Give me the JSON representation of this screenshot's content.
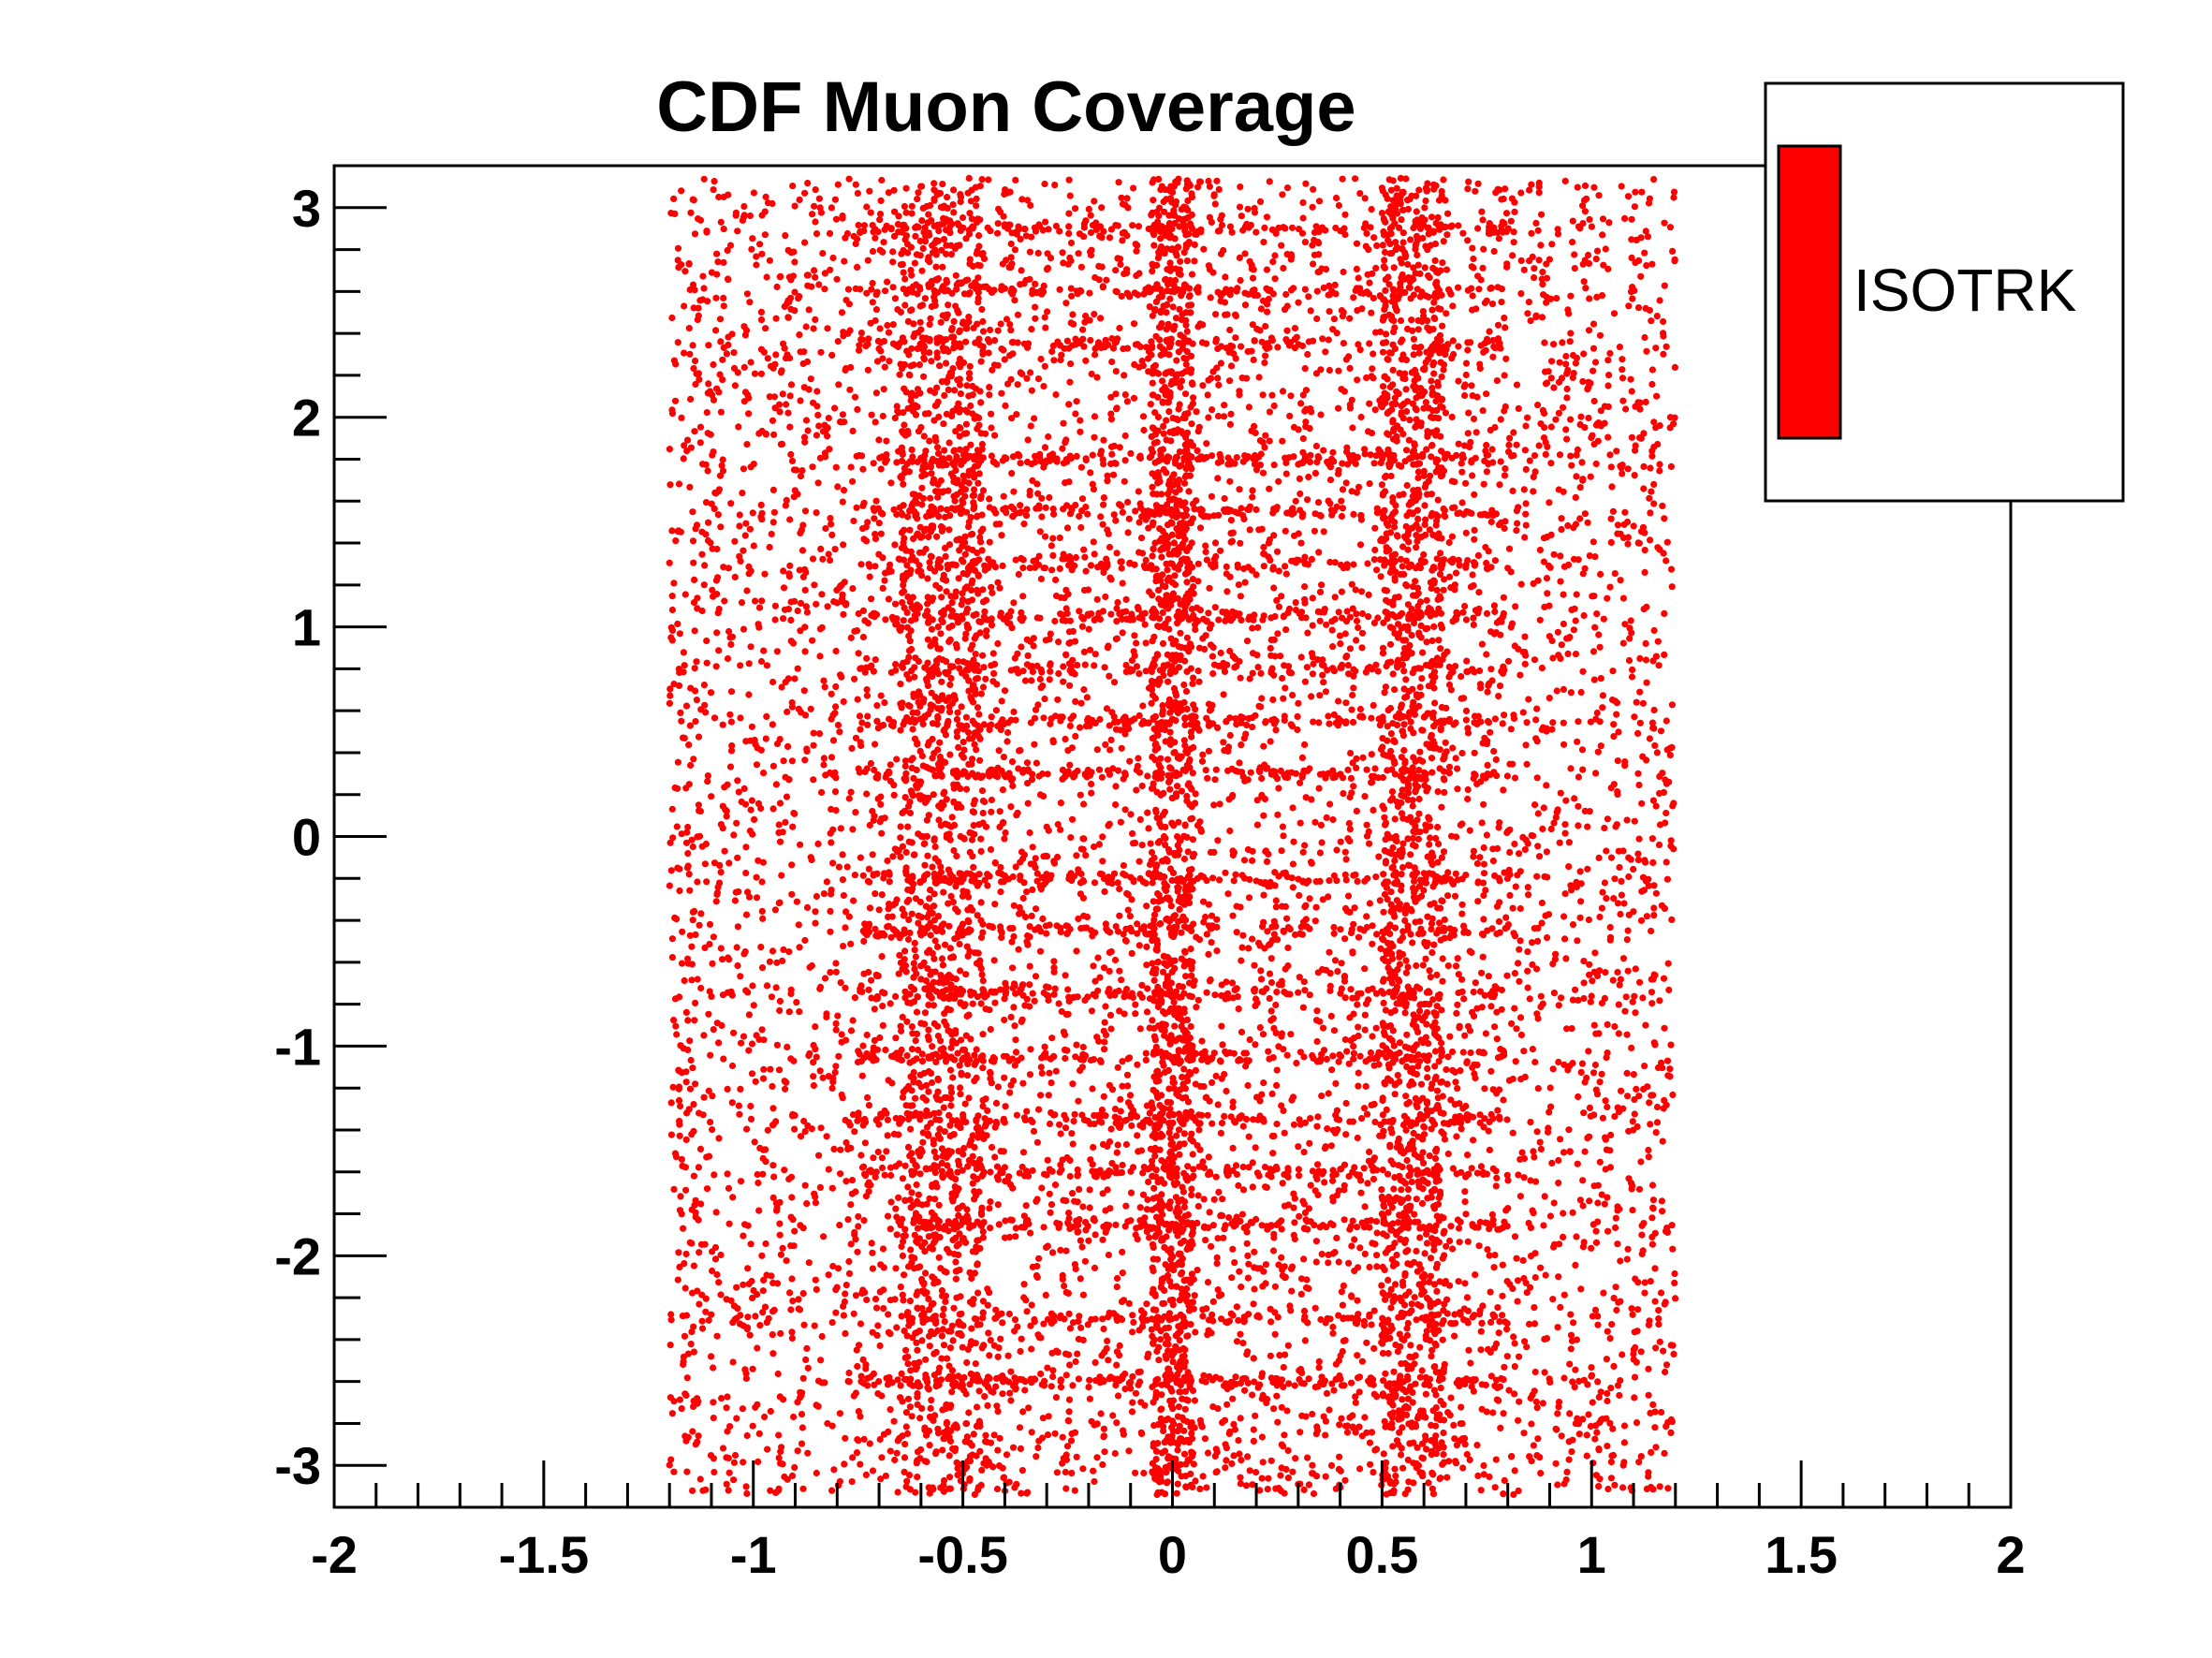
{
  "chart_data": {
    "type": "scatter",
    "title": "CDF Muon Coverage",
    "xlabel": "",
    "ylabel": "",
    "xlim": [
      -2,
      2
    ],
    "ylim": [
      -3.2,
      3.2
    ],
    "x_ticks": [
      "-2",
      "-1.5",
      "-1",
      "-0.5",
      "0",
      "0.5",
      "1",
      "1.5",
      "2"
    ],
    "y_ticks": [
      "-3",
      "-2",
      "-1",
      "0",
      "1",
      "2",
      "3"
    ],
    "grid": false,
    "legend_position": "top-right",
    "series": [
      {
        "name": "ISOTRK",
        "color": "#ff0000",
        "region": {
          "x_range": [
            -1.2,
            1.2
          ],
          "y_range": [
            -3.14,
            3.14
          ]
        },
        "dense_x_bands": [
          [
            -0.65,
            -0.45
          ],
          [
            0.5,
            0.65
          ],
          [
            -0.05,
            0.05
          ]
        ],
        "dense_y_rows": [
          -2.6,
          -2.3,
          -1.85,
          -1.6,
          -1.35,
          -1.05,
          -0.75,
          -0.45,
          -0.2,
          0.3,
          0.55,
          0.8,
          1.05,
          1.3,
          1.55,
          1.8,
          2.35,
          2.6,
          2.9
        ]
      }
    ]
  },
  "legend": {
    "entries": [
      {
        "label": "ISOTRK",
        "color": "#ff0000"
      }
    ]
  }
}
